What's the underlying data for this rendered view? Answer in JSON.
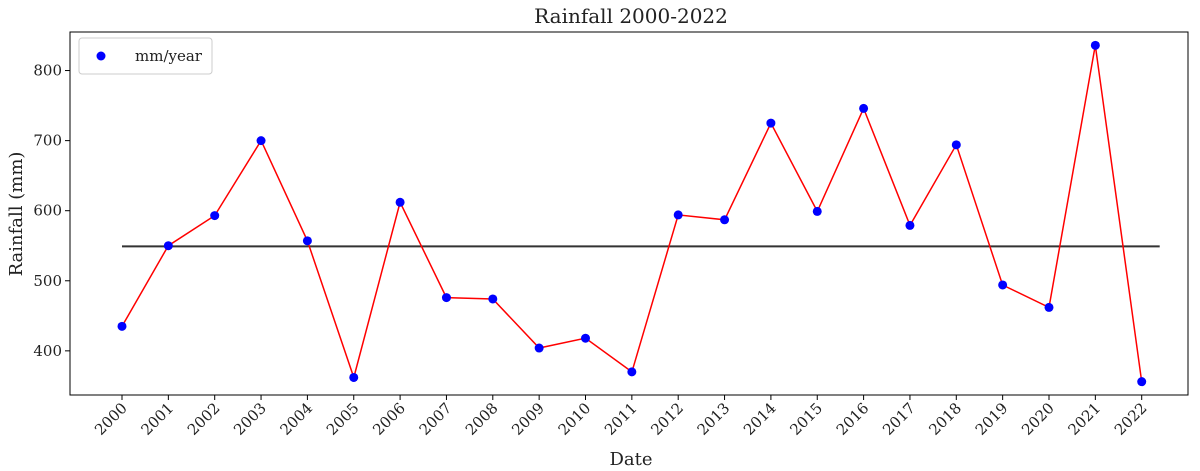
{
  "chart_data": {
    "type": "line",
    "title": "Rainfall 2000-2022",
    "xlabel": "Date",
    "ylabel": "Rainfall (mm)",
    "ylim": [
      337,
      855
    ],
    "yticks": [
      400,
      500,
      600,
      700,
      800
    ],
    "grid": false,
    "legend": {
      "placement": "top-left",
      "entries": [
        "mm/year"
      ]
    },
    "categories": [
      "2000",
      "2001",
      "2002",
      "2003",
      "2004",
      "2005",
      "2006",
      "2007",
      "2008",
      "2009",
      "2010",
      "2011",
      "2012",
      "2013",
      "2014",
      "2015",
      "2016",
      "2017",
      "2018",
      "2019",
      "2020",
      "2021",
      "2022"
    ],
    "series": [
      {
        "name": "mm/year",
        "values": [
          435,
          550,
          593,
          700,
          557,
          362,
          612,
          476,
          474,
          404,
          418,
          370,
          594,
          587,
          725,
          599,
          746,
          579,
          694,
          494,
          462,
          836,
          356
        ],
        "marker_color": "#0000ff",
        "line_color": "#ff0000"
      }
    ],
    "reference_line": {
      "value": 549,
      "color": "#333333"
    }
  }
}
